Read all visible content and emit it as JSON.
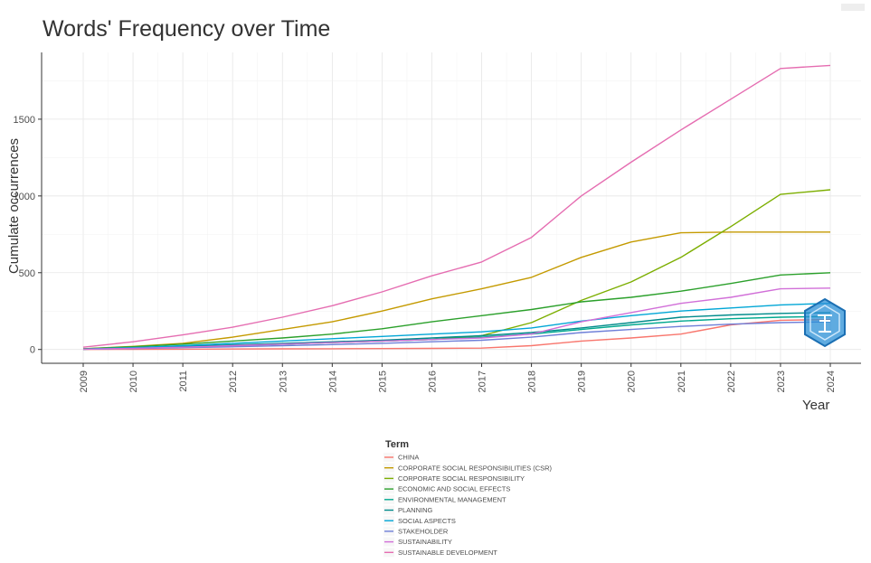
{
  "chart_data": {
    "type": "line",
    "title": "Words' Frequency over Time",
    "xlabel": "Year",
    "ylabel": "Cumulate occurrences",
    "x": [
      2009,
      2010,
      2011,
      2012,
      2013,
      2014,
      2015,
      2016,
      2017,
      2018,
      2019,
      2020,
      2021,
      2022,
      2023,
      2024
    ],
    "xlim": [
      2009,
      2024
    ],
    "ylim": [
      -90,
      1935
    ],
    "yticks": [
      0,
      500,
      1000,
      1500
    ],
    "xtick_rotation": -90,
    "grid": true,
    "legend": {
      "title": "Term",
      "placement": "bottom"
    },
    "series": [
      {
        "name": "CHINA",
        "color": "#F8766D",
        "values": [
          0,
          1,
          2,
          3,
          4,
          5,
          6,
          7,
          9,
          25,
          55,
          75,
          100,
          160,
          190,
          195
        ]
      },
      {
        "name": "CORPORATE SOCIAL RESPONSIBILITIES (CSR)",
        "color": "#C49A00",
        "values": [
          5,
          20,
          40,
          80,
          130,
          180,
          250,
          330,
          395,
          470,
          600,
          700,
          760,
          765,
          765,
          765
        ]
      },
      {
        "name": "CORPORATE SOCIAL RESPONSIBILITY",
        "color": "#7CAE00",
        "values": [
          3,
          8,
          15,
          25,
          35,
          45,
          55,
          65,
          90,
          175,
          320,
          440,
          600,
          800,
          1010,
          1040
        ]
      },
      {
        "name": "ECONOMIC AND SOCIAL EFFECTS",
        "color": "#2BA02B",
        "values": [
          5,
          18,
          35,
          55,
          75,
          100,
          135,
          180,
          220,
          260,
          310,
          340,
          380,
          430,
          485,
          500
        ]
      },
      {
        "name": "ENVIRONMENTAL MANAGEMENT",
        "color": "#00A88F",
        "values": [
          2,
          8,
          15,
          25,
          35,
          45,
          55,
          65,
          80,
          100,
          130,
          160,
          185,
          200,
          210,
          215
        ]
      },
      {
        "name": "PLANNING",
        "color": "#008B8B",
        "values": [
          2,
          10,
          20,
          30,
          40,
          50,
          60,
          75,
          90,
          110,
          140,
          175,
          210,
          225,
          235,
          240
        ]
      },
      {
        "name": "SOCIAL ASPECTS",
        "color": "#00A6D6",
        "values": [
          3,
          12,
          25,
          40,
          55,
          70,
          85,
          100,
          115,
          140,
          185,
          220,
          250,
          270,
          290,
          300
        ]
      },
      {
        "name": "STAKEHOLDER",
        "color": "#6E7FD8",
        "values": [
          2,
          6,
          12,
          18,
          25,
          32,
          40,
          50,
          60,
          80,
          110,
          130,
          150,
          165,
          175,
          180
        ]
      },
      {
        "name": "SUSTAINABILITY",
        "color": "#D16FD8",
        "values": [
          2,
          8,
          15,
          25,
          35,
          45,
          55,
          65,
          75,
          100,
          180,
          240,
          300,
          340,
          395,
          400
        ]
      },
      {
        "name": "SUSTAINABLE DEVELOPMENT",
        "color": "#E56DB1",
        "values": [
          15,
          50,
          95,
          145,
          210,
          285,
          375,
          480,
          570,
          730,
          1000,
          1220,
          1430,
          1630,
          1830,
          1850
        ]
      }
    ]
  }
}
